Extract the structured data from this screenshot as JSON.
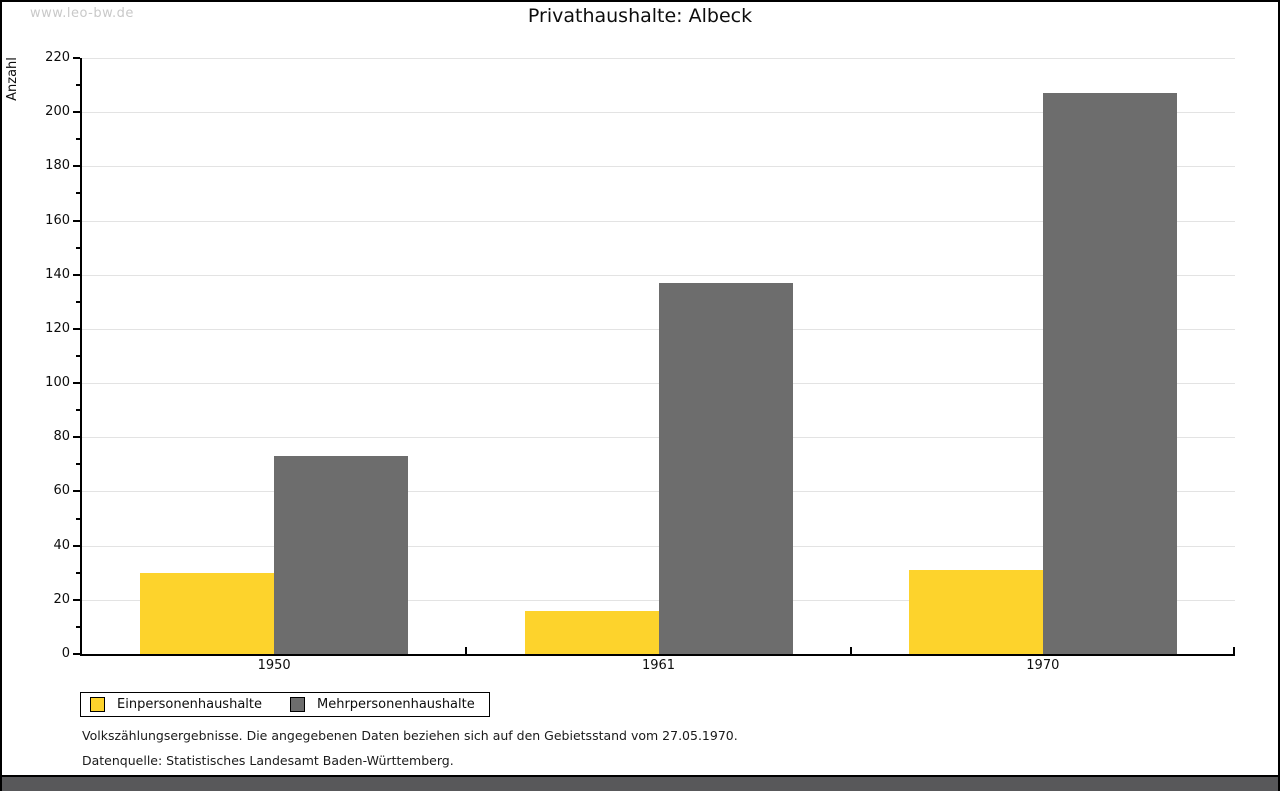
{
  "watermark": "www.leo-bw.de",
  "title": "Privathaushalte: Albeck",
  "chart_data": {
    "type": "bar",
    "title": "Privathaushalte: Albeck",
    "xlabel": "",
    "ylabel": "Anzahl",
    "categories": [
      "1950",
      "1961",
      "1970"
    ],
    "series": [
      {
        "name": "Einpersonenhaushalte",
        "color": "#FDD32C",
        "values": [
          30,
          16,
          31
        ]
      },
      {
        "name": "Mehrpersonenhaushalte",
        "color": "#6D6D6D",
        "values": [
          73,
          137,
          207
        ]
      }
    ],
    "ylim": [
      0,
      220
    ],
    "ytick_step": 20,
    "minor_tick_step": 10,
    "grid": true,
    "gridline_color": "#e3e3e3",
    "legend_position": "bottom-left"
  },
  "footer": {
    "line1": "Volkszählungsergebnisse. Die angegebenen Daten beziehen sich auf den Gebietsstand vom 27.05.1970.",
    "line2": "Datenquelle: Statistisches Landesamt Baden-Württemberg."
  },
  "colors": {
    "bottom_strip": "#58585a",
    "watermark": "#c9c9c9"
  }
}
